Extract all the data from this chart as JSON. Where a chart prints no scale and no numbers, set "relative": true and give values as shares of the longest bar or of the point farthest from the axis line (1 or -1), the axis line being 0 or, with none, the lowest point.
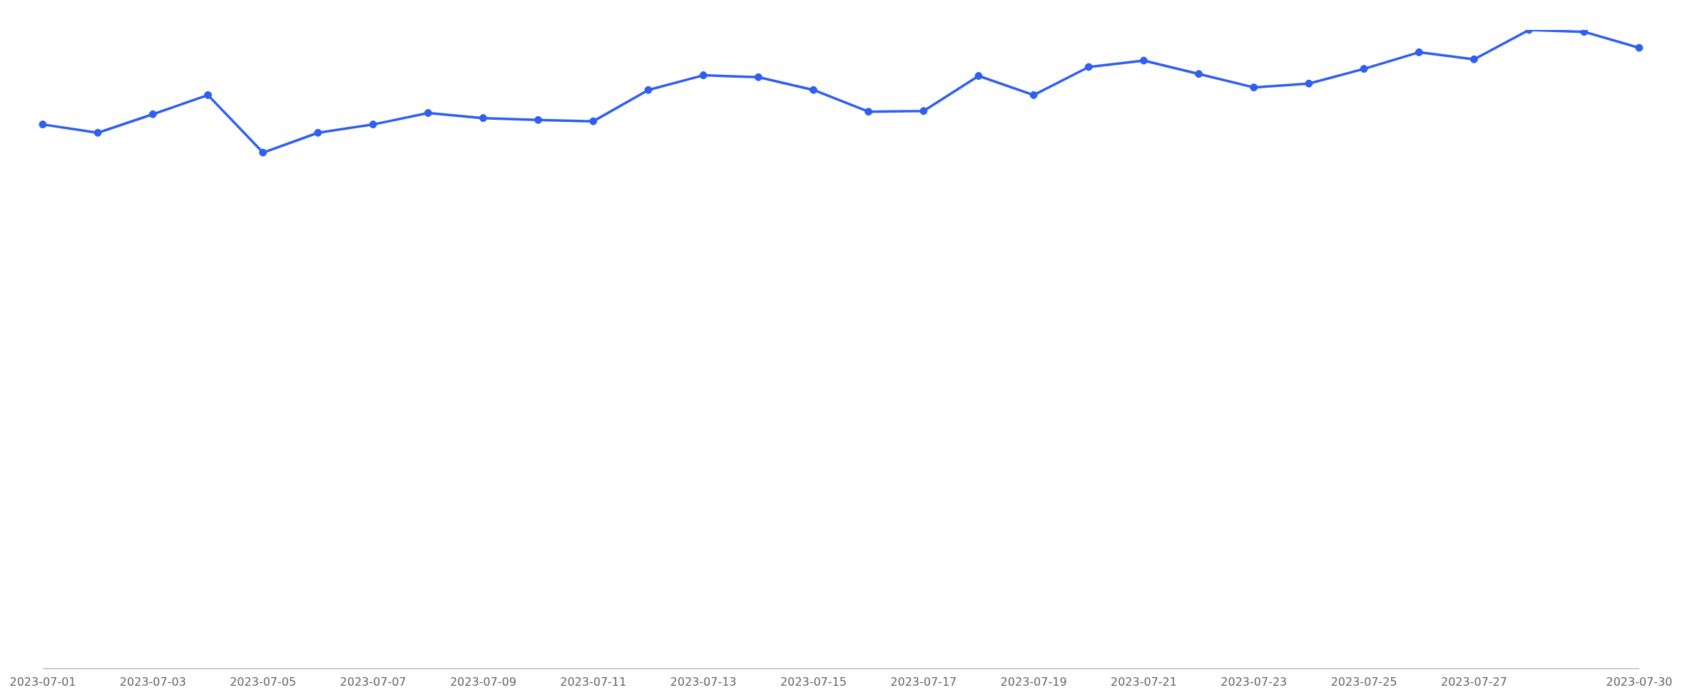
{
  "chart_data": {
    "type": "line",
    "relative": true,
    "categories": [
      "2023-07-01",
      null,
      "2023-07-03",
      null,
      "2023-07-05",
      null,
      "2023-07-07",
      null,
      "2023-07-09",
      null,
      "2023-07-11",
      null,
      "2023-07-13",
      null,
      "2023-07-15",
      null,
      "2023-07-17",
      null,
      "2023-07-19",
      null,
      "2023-07-21",
      null,
      "2023-07-23",
      null,
      "2023-07-25",
      null,
      "2023-07-27",
      null,
      null,
      "2023-07-30"
    ],
    "series": [
      {
        "color": "#2f5ff0",
        "values": [
          0.852,
          0.839,
          0.868,
          0.898,
          0.808,
          0.839,
          0.852,
          0.87,
          0.862,
          0.859,
          0.857,
          0.906,
          0.929,
          0.926,
          0.906,
          0.872,
          0.873,
          0.928,
          0.898,
          0.942,
          0.952,
          0.931,
          0.91,
          0.916,
          0.939,
          0.965,
          0.954,
          1,
          0.997,
          0.972
        ]
      }
    ],
    "marker": "circle",
    "grid": false,
    "legend": false
  }
}
